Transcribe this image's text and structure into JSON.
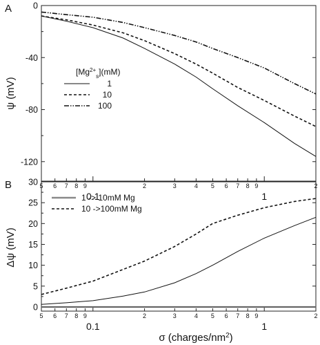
{
  "chart_data": [
    {
      "panel": "A",
      "type": "line",
      "scale_x": "log",
      "xlim": [
        0.05,
        2
      ],
      "ylim": [
        -135,
        0
      ],
      "ylabel": "ψ (mV)",
      "yticks": [
        0,
        -40,
        -80,
        -120
      ],
      "xtick_minor_labels": [
        "5",
        "6",
        "7",
        "8",
        "9",
        "2",
        "3",
        "4",
        "5",
        "6",
        "7",
        "8",
        "9",
        "2"
      ],
      "xtick_major_labels": [
        "0.1",
        "1"
      ],
      "legend": {
        "title_prefix": "[Mg",
        "title_sup": "2+",
        "title_sub": "s",
        "title_suffix": "](mM)",
        "placement": "middle-left"
      },
      "series": [
        {
          "name": "1",
          "style": "solid",
          "x": [
            0.05,
            0.07,
            0.1,
            0.15,
            0.2,
            0.3,
            0.4,
            0.5,
            0.7,
            1.0,
            1.5,
            2.0
          ],
          "y": [
            -8,
            -12,
            -17,
            -25,
            -33,
            -45,
            -55,
            -64,
            -77,
            -90,
            -106,
            -116
          ]
        },
        {
          "name": "10",
          "style": "dash",
          "x": [
            0.05,
            0.07,
            0.1,
            0.15,
            0.2,
            0.3,
            0.4,
            0.5,
            0.7,
            1.0,
            1.5,
            2.0
          ],
          "y": [
            -8,
            -11,
            -15,
            -21,
            -27,
            -37,
            -45,
            -52,
            -63,
            -73,
            -85,
            -93
          ]
        },
        {
          "name": "100",
          "style": "dashdotdot",
          "x": [
            0.05,
            0.07,
            0.1,
            0.15,
            0.2,
            0.3,
            0.4,
            0.5,
            0.7,
            1.0,
            1.5,
            2.0
          ],
          "y": [
            -5,
            -7,
            -9,
            -13,
            -17,
            -23,
            -28,
            -33,
            -40,
            -48,
            -60,
            -68
          ]
        }
      ]
    },
    {
      "panel": "B",
      "type": "line",
      "scale_x": "log",
      "xlim": [
        0.05,
        2
      ],
      "ylim": [
        -1,
        30
      ],
      "xlabel_prefix": "σ (charges/nm",
      "xlabel_sup": "2",
      "xlabel_suffix": ")",
      "ylabel": "Δψ (mV)",
      "yticks": [
        0,
        5,
        10,
        15,
        20,
        25,
        30
      ],
      "xtick_minor_labels": [
        "5",
        "6",
        "7",
        "8",
        "9",
        "2",
        "3",
        "4",
        "5",
        "6",
        "7",
        "8",
        "9",
        "2"
      ],
      "xtick_major_labels": [
        "0.1",
        "1"
      ],
      "legend": {
        "placement": "top-left"
      },
      "series": [
        {
          "name": "1 -> 10mM Mg",
          "style": "solid",
          "x": [
            0.05,
            0.07,
            0.1,
            0.15,
            0.2,
            0.3,
            0.4,
            0.5,
            0.7,
            1.0,
            1.5,
            2.0
          ],
          "y": [
            0.6,
            1.0,
            1.5,
            2.6,
            3.6,
            5.8,
            8.0,
            10.0,
            13.3,
            16.5,
            19.5,
            21.5
          ]
        },
        {
          "name": "10 ->100mM Mg",
          "style": "dash",
          "x": [
            0.05,
            0.07,
            0.1,
            0.15,
            0.2,
            0.3,
            0.4,
            0.5,
            0.7,
            1.0,
            1.5,
            2.0
          ],
          "y": [
            3.0,
            4.5,
            6.2,
            9.0,
            11.0,
            14.5,
            17.5,
            20.0,
            22.0,
            23.8,
            25.3,
            26.0
          ]
        }
      ]
    }
  ]
}
